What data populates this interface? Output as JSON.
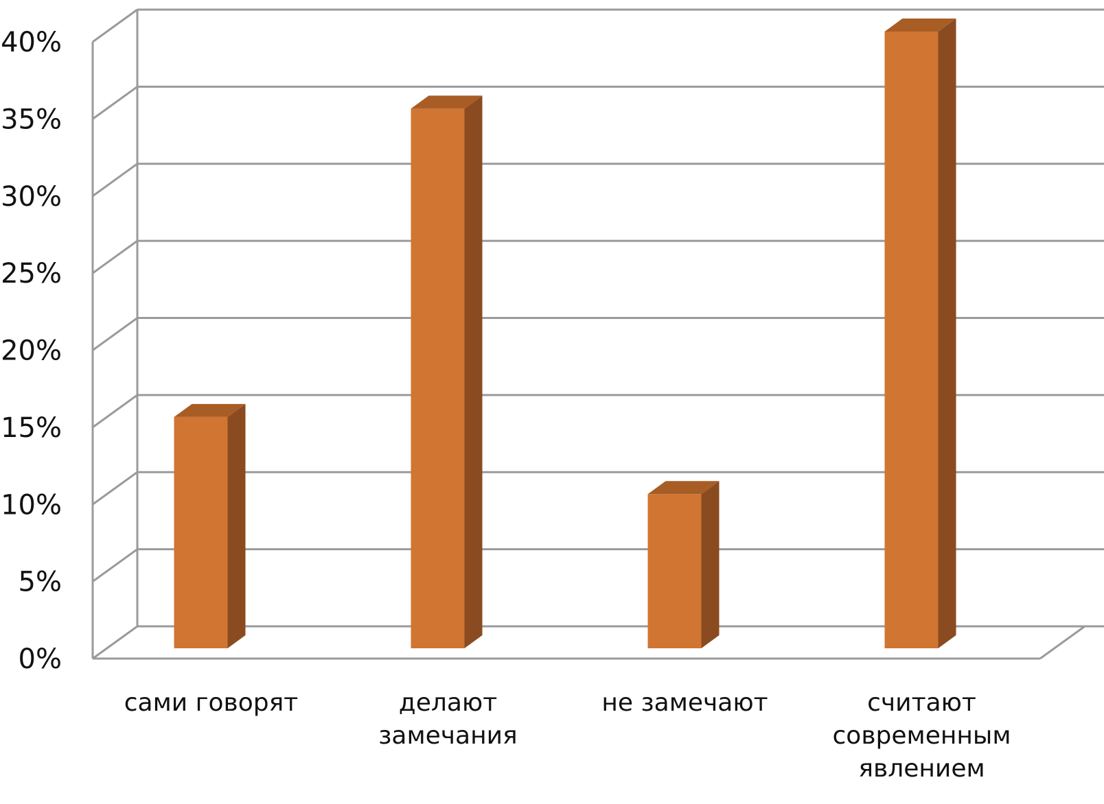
{
  "chart_data": {
    "type": "bar",
    "style": "3d-column",
    "categories": [
      [
        "сами говорят"
      ],
      [
        "делают",
        "замечания"
      ],
      [
        "не замечают"
      ],
      [
        "считают",
        "современным",
        "явлением"
      ]
    ],
    "values": [
      15,
      35,
      10,
      40
    ],
    "title": "",
    "xlabel": "",
    "ylabel": "",
    "ylim": [
      0,
      40
    ],
    "yticks": [
      "0%",
      "5%",
      "10%",
      "15%",
      "20%",
      "25%",
      "30%",
      "35%",
      "40%"
    ],
    "grid": true,
    "legend": "none",
    "colors": {
      "front": "#D07532",
      "side": "#8B4B20",
      "top": "#A85D25",
      "grid": "#9A9A9A"
    }
  }
}
